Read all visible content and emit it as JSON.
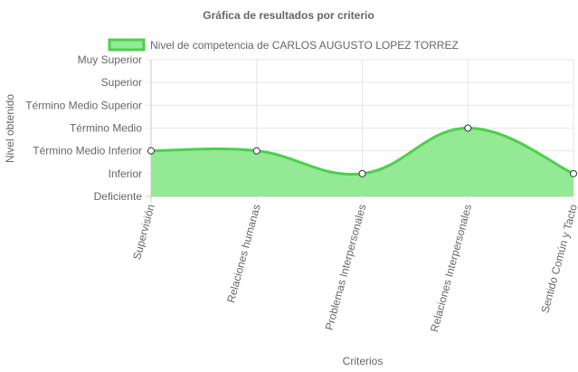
{
  "chart_data": {
    "type": "area",
    "title": "Gráfica de resultados por criterio",
    "xlabel": "Criterios",
    "ylabel": "Nivel obtenido",
    "y_levels": [
      "Deficiente",
      "Inferior",
      "Término Medio Inferior",
      "Término Medio",
      "Término Medio Superior",
      "Superior",
      "Muy Superior"
    ],
    "ylim": [
      0,
      6
    ],
    "categories": [
      "Supervisión",
      "Relaciones humanas",
      "Problemas Interpersonales",
      "Relaciones Interpersonales",
      "Sentido Común y Tacto"
    ],
    "series": [
      {
        "name": "Nivel de competencia de CARLOS AUGUSTO LOPEZ TORREZ",
        "values": [
          2,
          2,
          1,
          3,
          1
        ],
        "color": "#4cd04c",
        "fill": "#94e994"
      }
    ],
    "grid": true,
    "legend_position": "top"
  }
}
